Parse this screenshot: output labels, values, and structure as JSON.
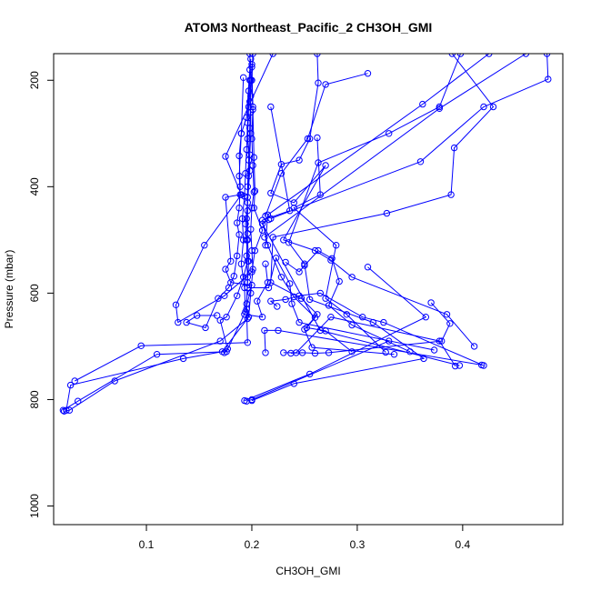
{
  "chart_data": {
    "type": "line",
    "title": "ATOM3 Northeast_Pacific_2 CH3OH_GMI",
    "xlabel": "CH3OH_GMI",
    "ylabel": "Pressure (mbar)",
    "xlim": [
      0.012,
      0.495
    ],
    "ylim": [
      1035,
      150
    ],
    "y_reversed": true,
    "grid": false,
    "color": "#0000ff",
    "x_ticks": [
      0.1,
      0.2,
      0.3,
      0.4
    ],
    "x_tick_labels": [
      "0.1",
      "0.2",
      "0.3",
      "0.4"
    ],
    "y_ticks": [
      200,
      400,
      600,
      800,
      1000
    ],
    "y_tick_labels": [
      "200",
      "400",
      "600",
      "800",
      "1000"
    ],
    "series": [
      {
        "points": [
          [
            0.198,
            150
          ],
          [
            0.199,
            200
          ],
          [
            0.198,
            240
          ],
          [
            0.199,
            260
          ],
          [
            0.199,
            300
          ],
          [
            0.198,
            340
          ],
          [
            0.197,
            380
          ],
          [
            0.196,
            420
          ],
          [
            0.195,
            460
          ],
          [
            0.196,
            500
          ],
          [
            0.197,
            540
          ],
          [
            0.196,
            580
          ],
          [
            0.195,
            620
          ],
          [
            0.196,
            648
          ],
          [
            0.17,
            690
          ],
          [
            0.07,
            765
          ],
          [
            0.027,
            820
          ],
          [
            0.022,
            822
          ]
        ]
      },
      {
        "points": [
          [
            0.201,
            150
          ],
          [
            0.2,
            200
          ],
          [
            0.201,
            250
          ],
          [
            0.2,
            310
          ],
          [
            0.201,
            360
          ],
          [
            0.202,
            410
          ],
          [
            0.2,
            440
          ],
          [
            0.199,
            480
          ],
          [
            0.2,
            520
          ],
          [
            0.201,
            555
          ],
          [
            0.199,
            600
          ],
          [
            0.197,
            645
          ],
          [
            0.172,
            710
          ],
          [
            0.135,
            723
          ],
          [
            0.028,
            773
          ],
          [
            0.024,
            820
          ]
        ]
      },
      {
        "points": [
          [
            0.199,
            160
          ],
          [
            0.197,
            220
          ],
          [
            0.196,
            280
          ],
          [
            0.195,
            330
          ],
          [
            0.194,
            375
          ],
          [
            0.193,
            418
          ],
          [
            0.191,
            460
          ],
          [
            0.192,
            500
          ],
          [
            0.19,
            545
          ],
          [
            0.193,
            590
          ],
          [
            0.194,
            635
          ],
          [
            0.176,
            710
          ],
          [
            0.11,
            715
          ],
          [
            0.035,
            803
          ],
          [
            0.021,
            820
          ]
        ]
      },
      {
        "points": [
          [
            0.2,
            170
          ],
          [
            0.199,
            230
          ],
          [
            0.198,
            290
          ],
          [
            0.197,
            350
          ],
          [
            0.196,
            400
          ],
          [
            0.196,
            445
          ],
          [
            0.196,
            488
          ],
          [
            0.195,
            530
          ],
          [
            0.196,
            570
          ],
          [
            0.195,
            630
          ],
          [
            0.196,
            693
          ],
          [
            0.095,
            699
          ],
          [
            0.032,
            765
          ]
        ]
      },
      {
        "points": [
          [
            0.2,
            175
          ],
          [
            0.201,
            255
          ],
          [
            0.202,
            345
          ],
          [
            0.203,
            408
          ],
          [
            0.202,
            440
          ],
          [
            0.21,
            482
          ],
          [
            0.203,
            520
          ],
          [
            0.2,
            560
          ],
          [
            0.174,
            605
          ],
          [
            0.13,
            655
          ],
          [
            0.128,
            622
          ],
          [
            0.155,
            510
          ],
          [
            0.19,
            415
          ],
          [
            0.175,
            343
          ],
          [
            0.22,
            150
          ]
        ]
      },
      {
        "points": [
          [
            0.198,
            180
          ],
          [
            0.195,
            270
          ],
          [
            0.19,
            300
          ],
          [
            0.188,
            342
          ],
          [
            0.189,
            400
          ],
          [
            0.188,
            440
          ],
          [
            0.186,
            468
          ],
          [
            0.188,
            490
          ],
          [
            0.186,
            530
          ],
          [
            0.183,
            568
          ],
          [
            0.178,
            590
          ],
          [
            0.168,
            610
          ],
          [
            0.156,
            665
          ],
          [
            0.138,
            655
          ],
          [
            0.148,
            642
          ],
          [
            0.167,
            642
          ]
        ]
      },
      {
        "points": [
          [
            0.192,
            195
          ],
          [
            0.19,
            300
          ],
          [
            0.188,
            380
          ],
          [
            0.189,
            415
          ],
          [
            0.175,
            420
          ],
          [
            0.18,
            540
          ],
          [
            0.175,
            555
          ],
          [
            0.18,
            580
          ],
          [
            0.2,
            585
          ],
          [
            0.193,
            640
          ],
          [
            0.21,
            645
          ],
          [
            0.205,
            615
          ],
          [
            0.215,
            580
          ],
          [
            0.213,
            545
          ]
        ]
      },
      {
        "points": [
          [
            0.198,
            200
          ],
          [
            0.197,
            250
          ],
          [
            0.196,
            310
          ],
          [
            0.198,
            370
          ],
          [
            0.196,
            430
          ],
          [
            0.194,
            470
          ],
          [
            0.195,
            500
          ],
          [
            0.196,
            540
          ],
          [
            0.192,
            570
          ],
          [
            0.186,
            605
          ],
          [
            0.176,
            645
          ],
          [
            0.17,
            651
          ],
          [
            0.177,
            705
          ],
          [
            0.174,
            712
          ]
        ]
      },
      {
        "points": [
          [
            0.48,
            150
          ],
          [
            0.481,
            198
          ],
          [
            0.42,
            250
          ],
          [
            0.36,
            353
          ],
          [
            0.218,
            460
          ]
        ]
      },
      {
        "points": [
          [
            0.46,
            150
          ],
          [
            0.378,
            253
          ],
          [
            0.212,
            495
          ]
        ]
      },
      {
        "points": [
          [
            0.425,
            150
          ],
          [
            0.362,
            245
          ],
          [
            0.215,
            453
          ],
          [
            0.213,
            510
          ]
        ]
      },
      {
        "points": [
          [
            0.262,
            150
          ],
          [
            0.263,
            205
          ],
          [
            0.255,
            310
          ],
          [
            0.245,
            350
          ],
          [
            0.228,
            358
          ],
          [
            0.218,
            412
          ],
          [
            0.24,
            430
          ],
          [
            0.27,
            360
          ],
          [
            0.23,
            500
          ],
          [
            0.26,
            520
          ],
          [
            0.275,
            538
          ],
          [
            0.295,
            570
          ],
          [
            0.385,
            640
          ],
          [
            0.411,
            700
          ]
        ]
      },
      {
        "points": [
          [
            0.31,
            187
          ],
          [
            0.27,
            208
          ],
          [
            0.253,
            310
          ],
          [
            0.228,
            375
          ],
          [
            0.213,
            455
          ]
        ]
      },
      {
        "points": [
          [
            0.218,
            250
          ],
          [
            0.236,
            445
          ],
          [
            0.21,
            463
          ],
          [
            0.215,
            510
          ],
          [
            0.228,
            570
          ],
          [
            0.24,
            607
          ],
          [
            0.26,
            646
          ],
          [
            0.252,
            665
          ],
          [
            0.27,
            671
          ],
          [
            0.295,
            710
          ]
        ]
      },
      {
        "points": [
          [
            0.262,
            308
          ],
          [
            0.265,
            415
          ],
          [
            0.24,
            440
          ],
          [
            0.28,
            510
          ],
          [
            0.27,
            610
          ],
          [
            0.29,
            640
          ],
          [
            0.327,
            711
          ]
        ]
      },
      {
        "points": [
          [
            0.398,
            150
          ],
          [
            0.378,
            250
          ],
          [
            0.33,
            300
          ],
          [
            0.263,
            355
          ],
          [
            0.235,
            505
          ],
          [
            0.25,
            545
          ],
          [
            0.255,
            612
          ],
          [
            0.315,
            655
          ],
          [
            0.363,
            723
          ],
          [
            0.24,
            770
          ],
          [
            0.2,
            802
          ]
        ]
      },
      {
        "points": [
          [
            0.39,
            150
          ],
          [
            0.429,
            250
          ],
          [
            0.392,
            327
          ],
          [
            0.389,
            415
          ],
          [
            0.328,
            450
          ],
          [
            0.22,
            495
          ],
          [
            0.218,
            580
          ],
          [
            0.247,
            610
          ],
          [
            0.262,
            640
          ],
          [
            0.25,
            668
          ],
          [
            0.257,
            702
          ],
          [
            0.335,
            715
          ]
        ]
      },
      {
        "points": [
          [
            0.418,
            735
          ],
          [
            0.225,
            670
          ],
          [
            0.212,
            670
          ],
          [
            0.213,
            712
          ]
        ]
      },
      {
        "points": [
          [
            0.42,
            736
          ],
          [
            0.325,
            655
          ],
          [
            0.305,
            645
          ],
          [
            0.265,
            600
          ],
          [
            0.245,
            605
          ],
          [
            0.232,
            612
          ],
          [
            0.218,
            615
          ],
          [
            0.224,
            625
          ]
        ]
      },
      {
        "points": [
          [
            0.373,
            707
          ],
          [
            0.245,
            655
          ],
          [
            0.238,
            620
          ],
          [
            0.236,
            582
          ],
          [
            0.223,
            534
          ],
          [
            0.216,
            590
          ],
          [
            0.196,
            590
          ]
        ]
      },
      {
        "points": [
          [
            0.35,
            710
          ],
          [
            0.295,
            660
          ],
          [
            0.273,
            623
          ],
          [
            0.283,
            578
          ],
          [
            0.276,
            535
          ],
          [
            0.263,
            520
          ],
          [
            0.25,
            548
          ],
          [
            0.245,
            560
          ],
          [
            0.232,
            542
          ]
        ]
      },
      {
        "points": [
          [
            0.31,
            551
          ],
          [
            0.365,
            645
          ],
          [
            0.255,
            752
          ],
          [
            0.193,
            802
          ]
        ]
      },
      {
        "points": [
          [
            0.37,
            618
          ],
          [
            0.388,
            657
          ],
          [
            0.38,
            690
          ],
          [
            0.273,
            712
          ],
          [
            0.26,
            713
          ],
          [
            0.248,
            712
          ],
          [
            0.237,
            713
          ]
        ]
      },
      {
        "points": [
          [
            0.397,
            736
          ],
          [
            0.265,
            670
          ],
          [
            0.21,
            470
          ],
          [
            0.216,
            462
          ]
        ]
      },
      {
        "points": [
          [
            0.393,
            737
          ],
          [
            0.378,
            690
          ],
          [
            0.275,
            645
          ],
          [
            0.242,
            712
          ],
          [
            0.23,
            712
          ]
        ]
      },
      {
        "points": [
          [
            0.33,
            690
          ],
          [
            0.2,
            800
          ],
          [
            0.195,
            803
          ]
        ]
      }
    ]
  }
}
